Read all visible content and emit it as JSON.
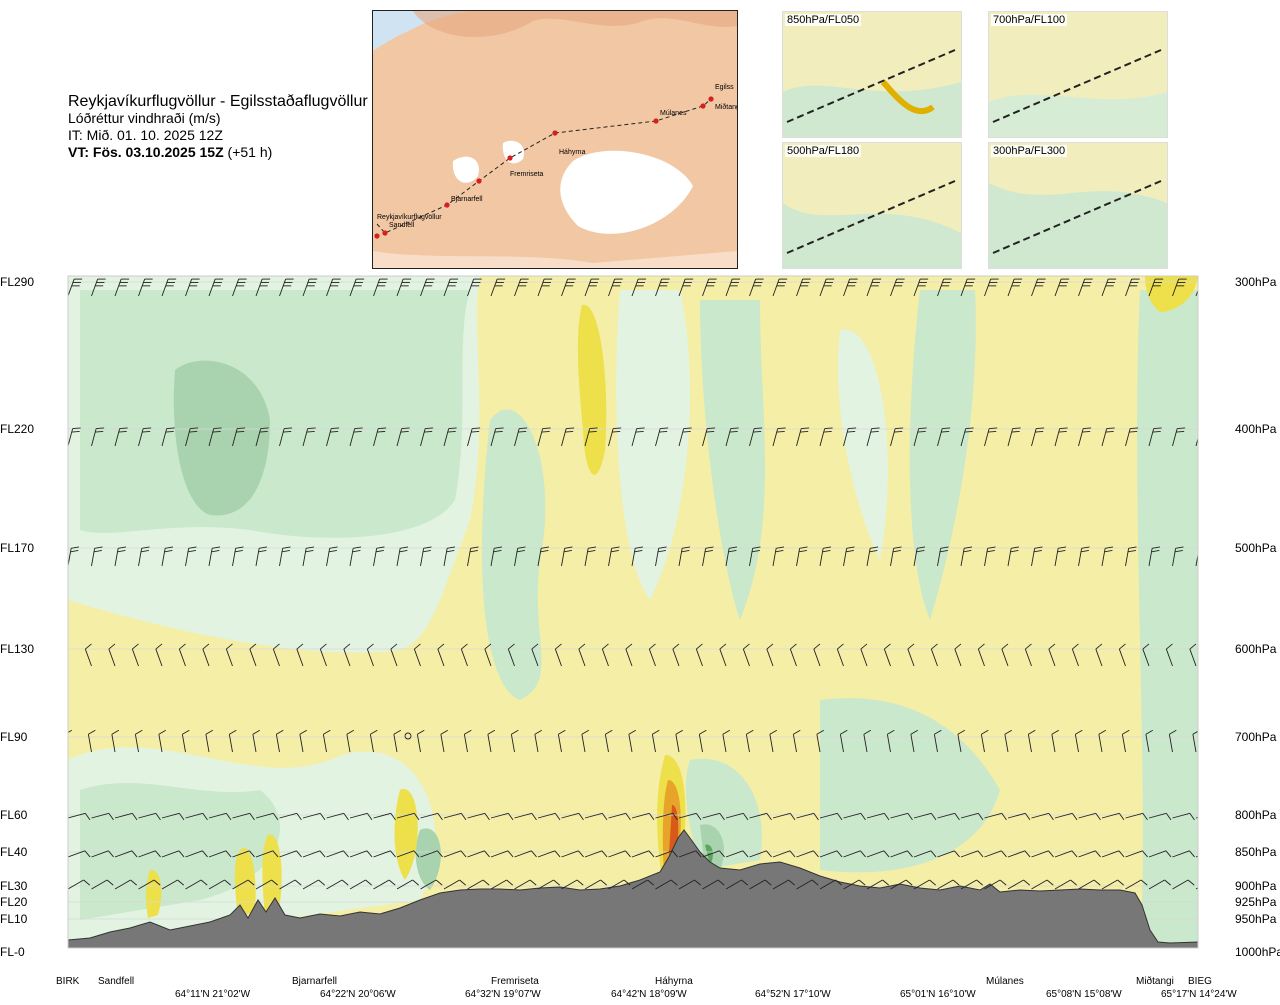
{
  "header": {
    "title": "Reykjavíkurflugvöllur - Egilsstaðaflugvöllur",
    "subtitle": "Lóðréttur vindhraði (m/s)",
    "issue_time": "IT: Mið. 01. 10. 2025 12Z",
    "valid_time_label": "VT: Fös. 03.10.2025 15Z",
    "valid_offset": "(+51 h)"
  },
  "map": {
    "route_points": [
      "Reykjavíkurflugvöllur",
      "Sandfell",
      "Bjarnarfell",
      "Fremriseta",
      "Háhyrna",
      "Múlanes",
      "Miðtangi",
      "Egilss"
    ],
    "route_color": "#d62020"
  },
  "mini_maps": [
    {
      "caption": "850hPa/FL050"
    },
    {
      "caption": "700hPa/FL100"
    },
    {
      "caption": "500hPa/FL180"
    },
    {
      "caption": "300hPa/FL300"
    }
  ],
  "chart_data": {
    "type": "cross-section",
    "levels": [
      {
        "fl": "FL290",
        "hpa": "300hPa"
      },
      {
        "fl": "FL220",
        "hpa": "400hPa"
      },
      {
        "fl": "FL170",
        "hpa": "500hPa"
      },
      {
        "fl": "FL130",
        "hpa": "600hPa"
      },
      {
        "fl": "FL90",
        "hpa": "700hPa"
      },
      {
        "fl": "FL60",
        "hpa": "800hPa"
      },
      {
        "fl": "FL40",
        "hpa": "850hPa"
      },
      {
        "fl": "FL30",
        "hpa": "900hPa"
      },
      {
        "fl": "FL20",
        "hpa": "925hPa"
      },
      {
        "fl": "FL10",
        "hpa": "950hPa"
      },
      {
        "fl": "FL-0",
        "hpa": "1000hPa"
      }
    ],
    "waypoints": [
      "BIRK",
      "Sandfell",
      "Bjarnarfell",
      "Fremriseta",
      "Háhyrna",
      "Múlanes",
      "Miðtangi",
      "BIEG"
    ],
    "coordinates": [
      "64°11'N 21°02'W",
      "64°22'N 20°06'W",
      "64°32'N 19°07'W",
      "64°42'N 18°09'W",
      "64°52'N 17°10'W",
      "65°01'N 16°10'W",
      "65°08'N 15°08'W",
      "65°17'N 14°24'W"
    ],
    "colors": {
      "down_strong": "#a9d3ae",
      "down": "#c9e8cc",
      "down_weak": "#e2f3e2",
      "neutral": "#fbfbe8",
      "up_weak": "#f5eea6",
      "up": "#ede04a",
      "up_strong": "#e8a42a",
      "up_max": "#d75a1a",
      "down_max": "#5aa85e",
      "terrain": "#777777"
    }
  }
}
